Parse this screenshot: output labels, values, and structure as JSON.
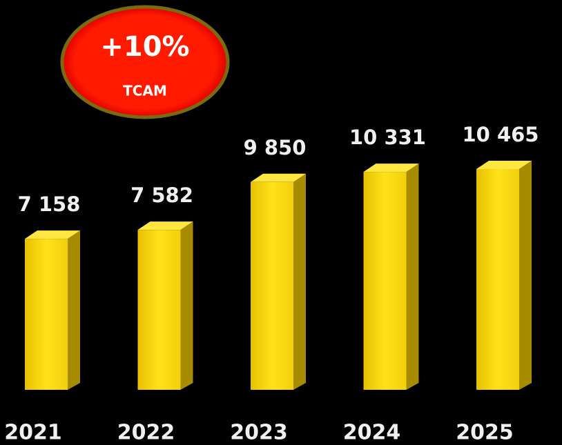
{
  "chart_data": {
    "type": "bar3d",
    "annotation": {
      "value": "+10%",
      "label": "TCAM"
    },
    "categories": [
      "2021",
      "2022",
      "2023",
      "2024",
      "2025"
    ],
    "values": [
      7158,
      7582,
      9850,
      10331,
      10465
    ],
    "value_labels": [
      "7 158",
      "7 582",
      "9 850",
      "10 331",
      "10 465"
    ],
    "color": "#f2cf0c"
  }
}
